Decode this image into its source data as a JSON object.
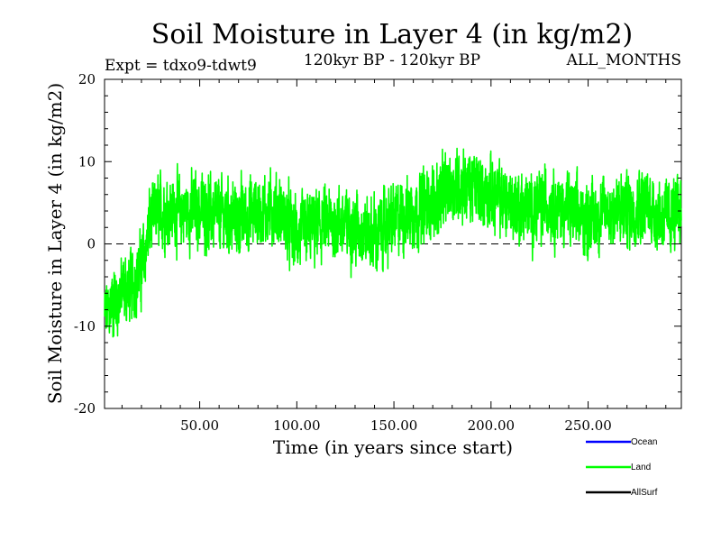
{
  "chart_data": {
    "type": "line",
    "title": "Soil Moisture in Layer 4 (in kg/m2)",
    "subtitle_left": "Expt = tdxo9-tdwt9",
    "subtitle_center": "120kyr BP - 120kyr BP",
    "subtitle_right": "ALL_MONTHS",
    "xlabel": "Time (in years since start)",
    "ylabel": "Soil Moisture in Layer 4 (in kg/m2)",
    "xlim": [
      1,
      298
    ],
    "ylim": [
      -20,
      20
    ],
    "x_ticks": [
      50,
      100,
      150,
      200,
      250
    ],
    "x_tick_labels": [
      "50.00",
      "100.00",
      "150.00",
      "200.00",
      "250.00"
    ],
    "y_ticks": [
      -20,
      -10,
      0,
      10,
      20
    ],
    "y_tick_labels": [
      "-20",
      "-10",
      "0",
      "10",
      "20"
    ],
    "zero_line": "dashed",
    "samples_per_year": 12,
    "series": [
      {
        "name": "Land",
        "color": "#00ff00",
        "note": "monthly values; trend given as [year, centre value] knots, noise amplitude approx",
        "trend": [
          [
            1,
            -9
          ],
          [
            5,
            -7
          ],
          [
            10,
            -6
          ],
          [
            15,
            -5
          ],
          [
            20,
            -3
          ],
          [
            25,
            3
          ],
          [
            30,
            4
          ],
          [
            40,
            4
          ],
          [
            50,
            4
          ],
          [
            60,
            3.5
          ],
          [
            70,
            3
          ],
          [
            80,
            4
          ],
          [
            90,
            4
          ],
          [
            100,
            1
          ],
          [
            110,
            2
          ],
          [
            120,
            2.5
          ],
          [
            130,
            2
          ],
          [
            140,
            1
          ],
          [
            150,
            3
          ],
          [
            160,
            4
          ],
          [
            170,
            5
          ],
          [
            180,
            7
          ],
          [
            190,
            7
          ],
          [
            200,
            6
          ],
          [
            210,
            5
          ],
          [
            220,
            4
          ],
          [
            230,
            5
          ],
          [
            240,
            4
          ],
          [
            250,
            3
          ],
          [
            260,
            4
          ],
          [
            270,
            4
          ],
          [
            280,
            5
          ],
          [
            290,
            3
          ],
          [
            298,
            4
          ]
        ],
        "noise_amplitude": 5.5
      },
      {
        "name": "Ocean",
        "color": "#0000ff"
      },
      {
        "name": "AllSurf",
        "color": "#000000"
      }
    ],
    "legend": [
      "Ocean",
      "Land",
      "AllSurf"
    ],
    "legend_position": "bottom-right"
  }
}
